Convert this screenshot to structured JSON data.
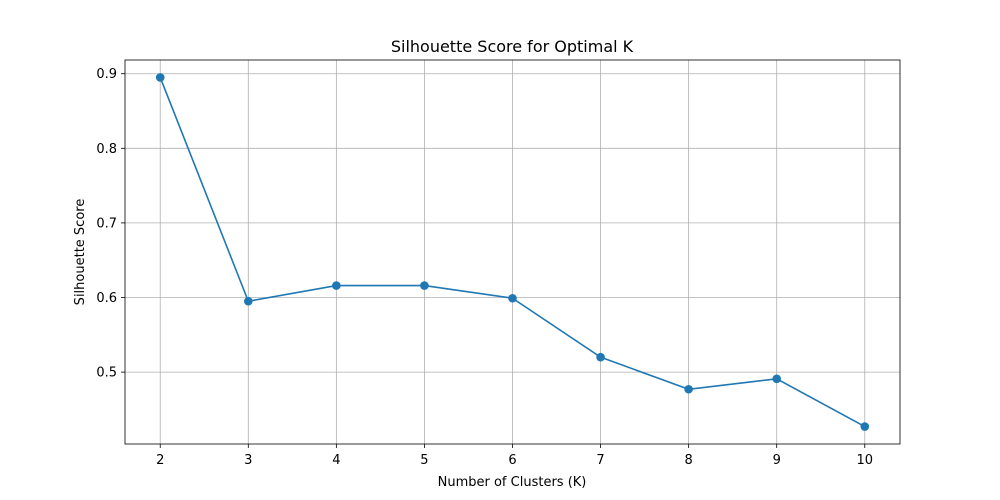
{
  "chart_data": {
    "type": "line",
    "title": "Silhouette Score for Optimal K",
    "xlabel": "Number of Clusters (K)",
    "ylabel": "Silhouette Score",
    "x": [
      2,
      3,
      4,
      5,
      6,
      7,
      8,
      9,
      10
    ],
    "series": [
      {
        "values": [
          0.895,
          0.595,
          0.616,
          0.616,
          0.599,
          0.52,
          0.477,
          0.491,
          0.427
        ],
        "color": "#1f77b4",
        "marker": "circle"
      }
    ],
    "xticks": [
      "2",
      "3",
      "4",
      "5",
      "6",
      "7",
      "8",
      "9",
      "10"
    ],
    "yticks": [
      "0.5",
      "0.6",
      "0.7",
      "0.8",
      "0.9"
    ],
    "xlim": [
      1.6,
      10.4
    ],
    "ylim": [
      0.4036,
      0.9184
    ],
    "grid": true,
    "grid_color": "#b0b0b0"
  }
}
